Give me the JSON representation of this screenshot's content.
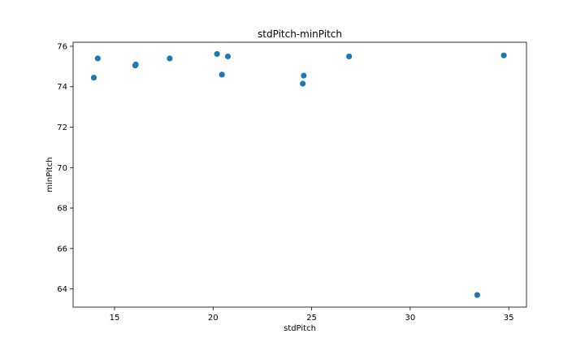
{
  "chart_data": {
    "type": "scatter",
    "title": "stdPitch-minPitch",
    "xlabel": "stdPitch",
    "ylabel": "minPitch",
    "xlim": [
      12.9,
      35.9
    ],
    "ylim": [
      63.1,
      76.2
    ],
    "xticks": [
      15,
      20,
      25,
      30,
      35
    ],
    "yticks": [
      64,
      66,
      68,
      70,
      72,
      74,
      76
    ],
    "grid": false,
    "point_color": "#1f77b4",
    "points": [
      {
        "x": 13.95,
        "y": 74.45
      },
      {
        "x": 14.15,
        "y": 75.4
      },
      {
        "x": 16.05,
        "y": 75.05
      },
      {
        "x": 16.08,
        "y": 75.1
      },
      {
        "x": 17.8,
        "y": 75.4
      },
      {
        "x": 20.2,
        "y": 75.62
      },
      {
        "x": 20.45,
        "y": 74.6
      },
      {
        "x": 20.75,
        "y": 75.5
      },
      {
        "x": 24.55,
        "y": 74.15
      },
      {
        "x": 24.6,
        "y": 74.55
      },
      {
        "x": 26.9,
        "y": 75.5
      },
      {
        "x": 33.4,
        "y": 63.7
      },
      {
        "x": 34.75,
        "y": 75.55
      }
    ]
  }
}
